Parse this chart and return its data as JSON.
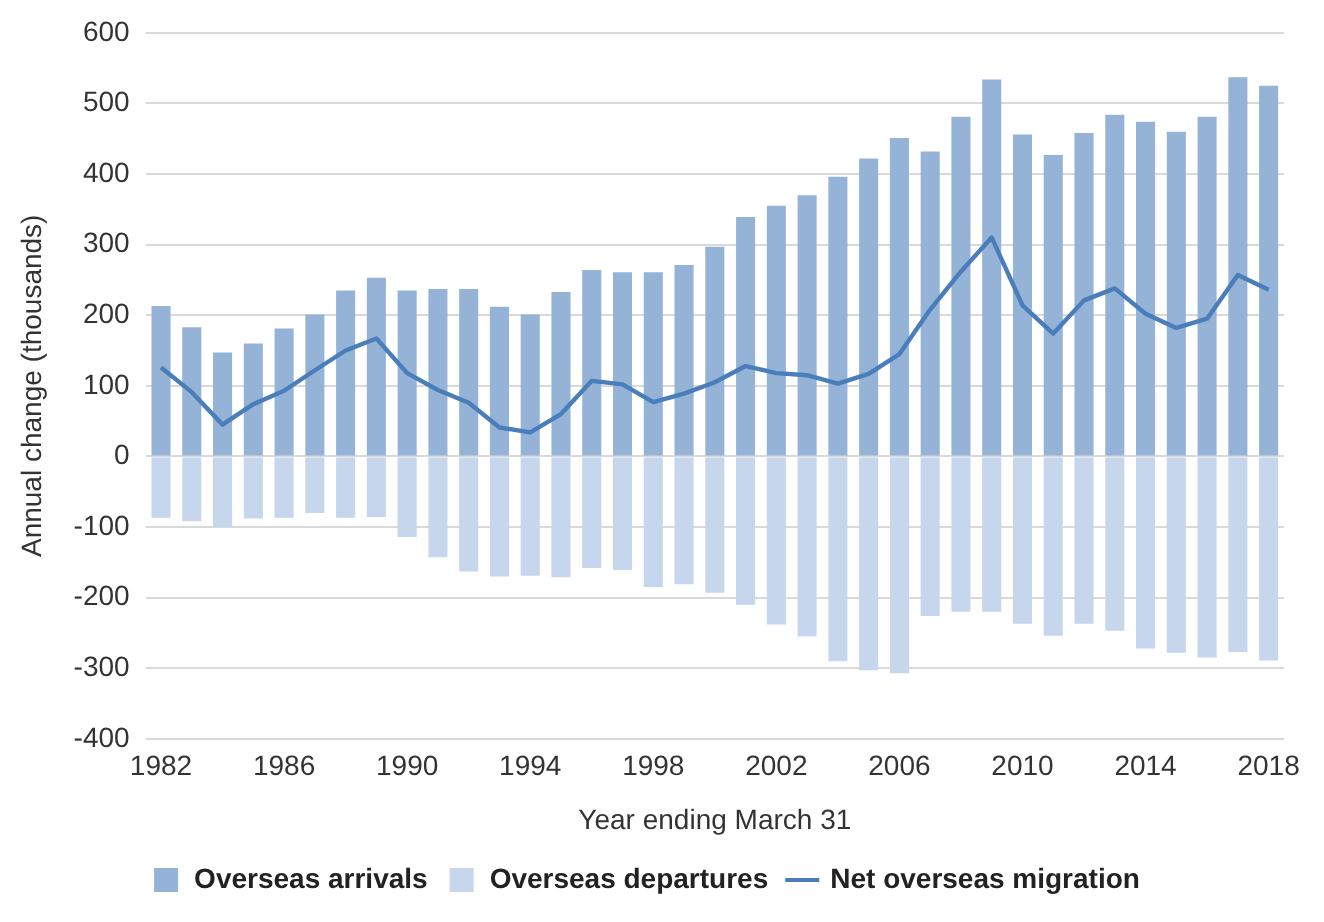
{
  "chart_data": {
    "type": "bar",
    "stacked": true,
    "xlabel": "Year ending March 31",
    "ylabel": "Annual change (thousands)",
    "categories": [
      "1982",
      null,
      null,
      null,
      "1986",
      null,
      null,
      null,
      "1990",
      null,
      null,
      null,
      "1994",
      null,
      null,
      null,
      "1998",
      null,
      null,
      null,
      "2002",
      null,
      null,
      null,
      "2006",
      null,
      null,
      null,
      "2010",
      null,
      null,
      null,
      "2014",
      null,
      null,
      null,
      "2018"
    ],
    "series": [
      {
        "name": "Overseas arrivals",
        "color": "#95b3d7",
        "values": [
          213,
          183,
          147,
          160,
          181,
          201,
          235,
          253,
          235,
          237,
          237,
          212,
          201,
          233,
          264,
          261,
          261,
          271,
          297,
          339,
          355,
          370,
          396,
          422,
          451,
          432,
          481,
          534,
          456,
          427,
          458,
          484,
          474,
          460,
          481,
          537,
          525
        ]
      },
      {
        "name": "Overseas departures",
        "color": "#c6d6ec",
        "values": [
          -87,
          -92,
          -100,
          -88,
          -87,
          -80,
          -87,
          -86,
          -114,
          -143,
          -163,
          -170,
          -169,
          -171,
          -158,
          -161,
          -185,
          -181,
          -193,
          -210,
          -238,
          -255,
          -290,
          -303,
          -307,
          -226,
          -220,
          -220,
          -237,
          -254,
          -237,
          -247,
          -272,
          -278,
          -285,
          -277,
          -289
        ]
      },
      {
        "name": "Net overseas migration",
        "type": "line",
        "color": "#4a7ebb",
        "values": [
          126,
          91,
          45,
          74,
          93,
          122,
          150,
          167,
          118,
          94,
          76,
          41,
          34,
          60,
          107,
          102,
          77,
          89,
          105,
          128,
          118,
          115,
          103,
          117,
          145,
          208,
          262,
          310,
          214,
          174,
          221,
          238,
          202,
          182,
          195,
          257,
          236
        ]
      }
    ],
    "ylim": [
      -400,
      600
    ],
    "yticks": [
      -400,
      -300,
      -200,
      -100,
      0,
      100,
      200,
      300,
      400,
      500,
      600
    ],
    "grid": "y",
    "legend": "bottom",
    "marker": "none",
    "line_style": "solid"
  }
}
